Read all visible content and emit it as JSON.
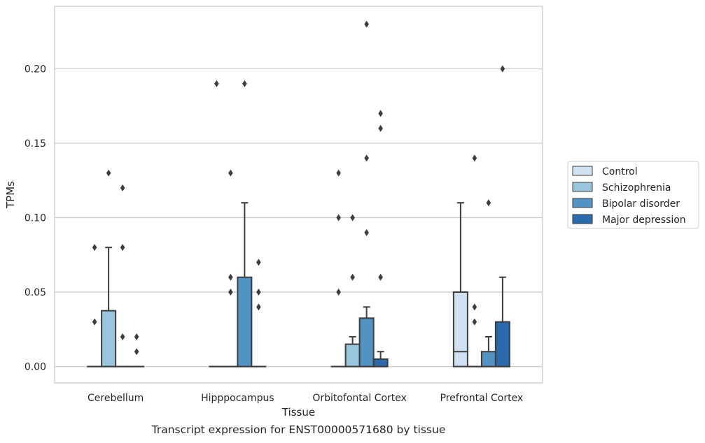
{
  "caption": "Transcript expression for ENST00000571680 by tissue",
  "chart_data": {
    "type": "box",
    "xlabel": "Tissue",
    "ylabel": "TPMs",
    "ylim": [
      -0.011,
      0.242
    ],
    "yticks": [
      "0.00",
      "0.05",
      "0.10",
      "0.15",
      "0.20"
    ],
    "ytick_values": [
      0.0,
      0.05,
      0.1,
      0.15,
      0.2
    ],
    "grid": "horizontal",
    "legend_position": "right",
    "categories": [
      "Cerebellum",
      "Hipppocampus",
      "Orbitofontal Cortex",
      "Prefrontal Cortex"
    ],
    "series": [
      {
        "name": "Control",
        "color": "#d0e1f2",
        "boxes": [
          {
            "q1": 0.0,
            "median": 0.0,
            "q3": 0.0,
            "whislo": 0.0,
            "whishi": 0.0,
            "fliers": [
              0.03,
              0.08
            ]
          },
          {
            "q1": 0.0,
            "median": 0.0,
            "q3": 0.0,
            "whislo": 0.0,
            "whishi": 0.0,
            "fliers": [
              0.19
            ]
          },
          {
            "q1": 0.0,
            "median": 0.0,
            "q3": 0.0,
            "whislo": 0.0,
            "whishi": 0.0,
            "fliers": [
              0.05,
              0.1,
              0.13
            ]
          },
          {
            "q1": 0.0,
            "median": 0.01,
            "q3": 0.05,
            "whislo": 0.0,
            "whishi": 0.11,
            "fliers": []
          }
        ]
      },
      {
        "name": "Schizophrenia",
        "color": "#9ac5de",
        "boxes": [
          {
            "q1": 0.0,
            "median": 0.0,
            "q3": 0.0375,
            "whislo": 0.0,
            "whishi": 0.08,
            "fliers": [
              0.13
            ]
          },
          {
            "q1": 0.0,
            "median": 0.0,
            "q3": 0.0,
            "whislo": 0.0,
            "whishi": 0.0,
            "fliers": [
              0.05,
              0.06,
              0.13
            ]
          },
          {
            "q1": 0.0,
            "median": 0.0,
            "q3": 0.015,
            "whislo": 0.0,
            "whishi": 0.02,
            "fliers": [
              0.06,
              0.1
            ]
          },
          {
            "q1": 0.0,
            "median": 0.0,
            "q3": 0.0,
            "whislo": 0.0,
            "whishi": 0.0,
            "fliers": [
              0.03,
              0.04,
              0.14
            ]
          }
        ]
      },
      {
        "name": "Bipolar disorder",
        "color": "#5194c3",
        "boxes": [
          {
            "q1": 0.0,
            "median": 0.0,
            "q3": 0.0,
            "whislo": 0.0,
            "whishi": 0.0,
            "fliers": [
              0.02,
              0.08,
              0.12
            ]
          },
          {
            "q1": 0.0,
            "median": 0.0,
            "q3": 0.06,
            "whislo": 0.0,
            "whishi": 0.11,
            "fliers": [
              0.19
            ]
          },
          {
            "q1": 0.0,
            "median": 0.0,
            "q3": 0.0325,
            "whislo": 0.0,
            "whishi": 0.04,
            "fliers": [
              0.09,
              0.14,
              0.23
            ]
          },
          {
            "q1": 0.0,
            "median": 0.0,
            "q3": 0.01,
            "whislo": 0.0,
            "whishi": 0.02,
            "fliers": [
              0.11
            ]
          }
        ]
      },
      {
        "name": "Major depression",
        "color": "#2a6aad",
        "boxes": [
          {
            "q1": 0.0,
            "median": 0.0,
            "q3": 0.0,
            "whislo": 0.0,
            "whishi": 0.0,
            "fliers": [
              0.01,
              0.02
            ]
          },
          {
            "q1": 0.0,
            "median": 0.0,
            "q3": 0.0,
            "whislo": 0.0,
            "whishi": 0.0,
            "fliers": [
              0.04,
              0.05,
              0.07
            ]
          },
          {
            "q1": 0.0,
            "median": 0.0,
            "q3": 0.005,
            "whislo": 0.0,
            "whishi": 0.01,
            "fliers": [
              0.06,
              0.16,
              0.17
            ]
          },
          {
            "q1": 0.0,
            "median": 0.0,
            "q3": 0.03,
            "whislo": 0.0,
            "whishi": 0.06,
            "fliers": [
              0.2
            ]
          }
        ]
      }
    ]
  }
}
